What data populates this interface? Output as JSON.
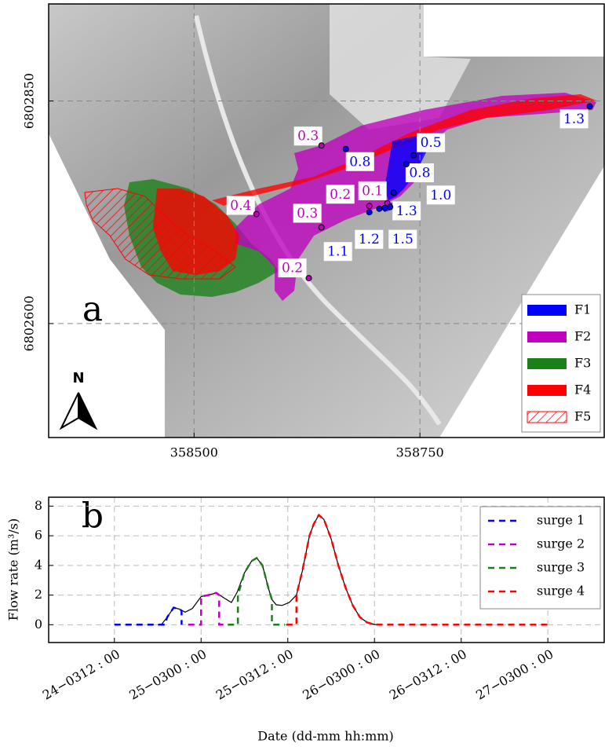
{
  "chart_data": [
    {
      "type": "map",
      "panel_label": "a",
      "north_label": "N",
      "xlim": [
        358339,
        358954
      ],
      "ylim": [
        6802472,
        6802959
      ],
      "xticks": [
        358500,
        358750
      ],
      "yticks": [
        6802600,
        6802850
      ],
      "grid": true,
      "areas": [
        {
          "name": "F1",
          "color": "#0000ff",
          "hatch": false
        },
        {
          "name": "F2",
          "color": "#bf00bf",
          "hatch": false
        },
        {
          "name": "F3",
          "color": "#1a801a",
          "hatch": false
        },
        {
          "name": "F4",
          "color": "#ff0000",
          "hatch": false
        },
        {
          "name": "F5",
          "color": "#ff0000",
          "hatch": true
        }
      ],
      "legend_position": "lower right",
      "points": {
        "x": [
          358938,
          358641,
          358668,
          358743,
          358735,
          358721,
          358569,
          358694,
          358714,
          358641,
          358627,
          358694,
          358705,
          358711,
          358717
        ],
        "y": [
          6802844,
          6802800,
          6802796,
          6802789,
          6802779,
          6802747,
          6802723,
          6802732,
          6802735,
          6802708,
          6802651,
          6802725,
          6802729,
          6802730,
          6802731
        ],
        "labels": [
          1.3,
          0.3,
          0.8,
          0.5,
          0.8,
          1.0,
          0.4,
          0.2,
          0.1,
          0.3,
          0.2,
          1.1,
          1.2,
          1.5,
          1.3
        ],
        "value_labels": [
          "1.3",
          "0.3",
          "0.8",
          "0.5",
          "0.8",
          "1.0",
          "0.4",
          "0.2",
          "0.1",
          "0.3",
          "0.2",
          "1.1",
          "1.2",
          "1.5",
          "1.3"
        ],
        "colors": [
          "#0000ff",
          "#bf00bf",
          "#0000ff",
          "#0000ff",
          "#0000ff",
          "#0000ff",
          "#bf00bf",
          "#bf00bf",
          "#bf00bf",
          "#bf00bf",
          "#bf00bf",
          "#0000ff",
          "#0000ff",
          "#0000ff",
          "#0000ff"
        ]
      }
    },
    {
      "type": "line",
      "panel_label": "b",
      "x_label": "Date (dd-mm hh:mm)",
      "y_label": "Flow rate (m³/s)",
      "xlim": [
        -9.1,
        67.8
      ],
      "ylim": [
        -1.2,
        8.6
      ],
      "xticks": [
        {
          "value": 0,
          "label": "24−0312 : 00"
        },
        {
          "value": 12,
          "label": "25−0300 : 00"
        },
        {
          "value": 24,
          "label": "25−0312 : 00"
        },
        {
          "value": 36,
          "label": "26−0300 : 00"
        },
        {
          "value": 48,
          "label": "26−0312 : 00"
        },
        {
          "value": 60,
          "label": "27−0300 : 00"
        }
      ],
      "yticks": [
        0,
        2,
        4,
        6,
        8
      ],
      "grid": true,
      "legend_position": "upper right",
      "series": [
        {
          "color": "#000000",
          "linestyle": "solid",
          "x": [
            6,
            6.5,
            7.3,
            8.2,
            9,
            9.8,
            10.8,
            12,
            13,
            14.1,
            15.2,
            16.2,
            17,
            18,
            19,
            19.7,
            20.5,
            21.3,
            21.8,
            22.4,
            23.2,
            24.2,
            25.2,
            26,
            27,
            27.6,
            28.3,
            29,
            30,
            31,
            32,
            33,
            34,
            35,
            36,
            37
          ],
          "values": [
            0,
            0,
            0.5,
            1.15,
            1.05,
            0.85,
            1.1,
            1.9,
            2.0,
            2.15,
            1.8,
            1.5,
            2.2,
            3.5,
            4.3,
            4.5,
            4.0,
            2.5,
            1.7,
            1.35,
            1.3,
            1.5,
            2.0,
            3.6,
            6.0,
            6.8,
            7.4,
            7.1,
            5.8,
            4.0,
            2.5,
            1.3,
            0.5,
            0.15,
            0.02,
            0
          ]
        },
        {
          "name": "surge 1",
          "color": "#0000ff",
          "linestyle": "dashed",
          "x": [
            0,
            7,
            7.3,
            8.2,
            9,
            9.3,
            9.3
          ],
          "values": [
            0,
            0,
            0.5,
            1.15,
            1.05,
            0.95,
            0
          ]
        },
        {
          "name": "surge 2",
          "color": "#bf00bf",
          "linestyle": "dashed",
          "x": [
            10.2,
            12,
            12,
            13,
            14.1,
            14.5,
            14.5,
            15.6
          ],
          "values": [
            0,
            0,
            1.9,
            2.0,
            2.15,
            2.0,
            0,
            0
          ]
        },
        {
          "name": "surge 3",
          "color": "#1a801a",
          "linestyle": "dashed",
          "x": [
            15.7,
            17.1,
            17.1,
            18,
            19,
            19.7,
            20.5,
            21.3,
            21.8,
            21.8,
            23.6
          ],
          "values": [
            0,
            0,
            2.0,
            3.5,
            4.3,
            4.5,
            4.0,
            2.5,
            1.7,
            0,
            0
          ]
        },
        {
          "name": "surge 4",
          "color": "#ff0000",
          "linestyle": "dashed",
          "x": [
            23.8,
            25.2,
            25.2,
            26,
            27,
            27.6,
            28.3,
            29,
            30,
            31,
            32,
            33,
            34,
            35,
            36,
            37,
            60
          ],
          "values": [
            0,
            0,
            2.0,
            3.6,
            6.0,
            6.8,
            7.4,
            7.1,
            5.8,
            4.0,
            2.5,
            1.3,
            0.5,
            0.15,
            0.02,
            0,
            0
          ]
        }
      ]
    }
  ]
}
